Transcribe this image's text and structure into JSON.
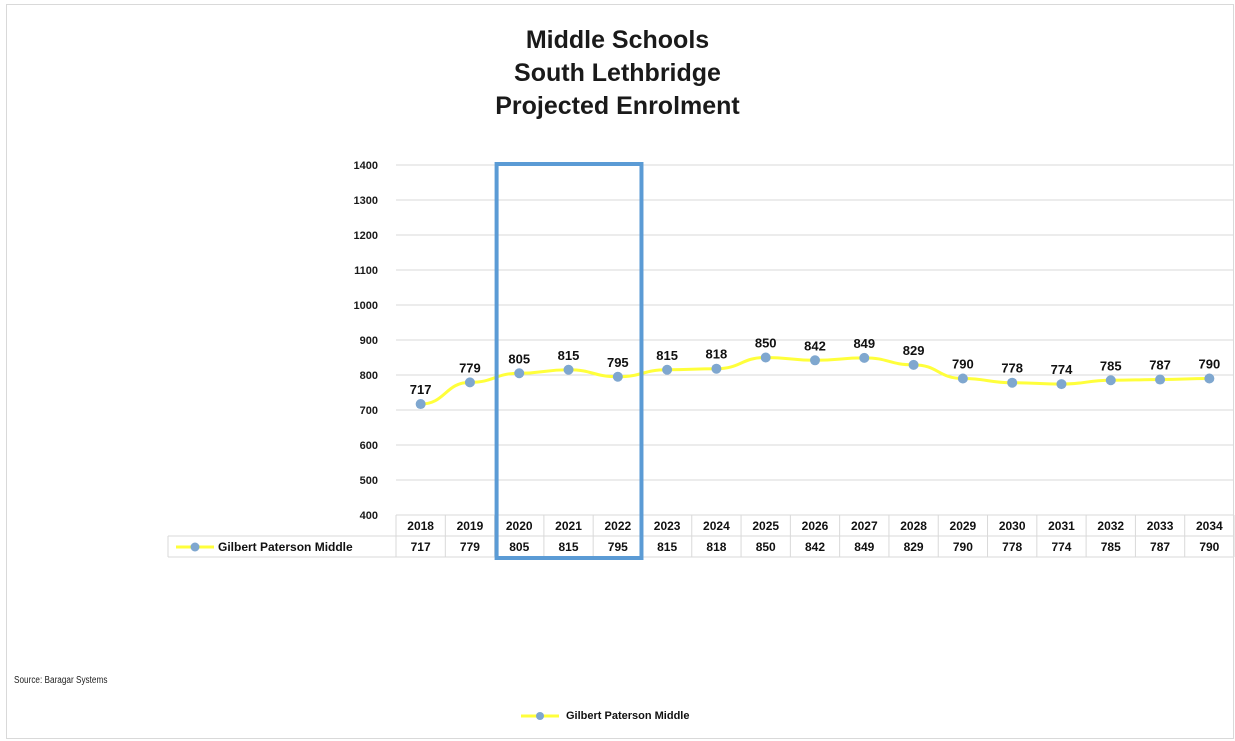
{
  "chart_data": {
    "type": "line",
    "title_lines": [
      "Middle Schools",
      "South Lethbridge",
      "Projected Enrolment"
    ],
    "x": [
      "2018",
      "2019",
      "2020",
      "2021",
      "2022",
      "2023",
      "2024",
      "2025",
      "2026",
      "2027",
      "2028",
      "2029",
      "2030",
      "2031",
      "2032",
      "2033",
      "2034"
    ],
    "series": [
      {
        "name": "Gilbert Paterson Middle",
        "values": [
          717,
          779,
          805,
          815,
          795,
          815,
          818,
          850,
          842,
          849,
          829,
          790,
          778,
          774,
          785,
          787,
          790
        ]
      }
    ],
    "ylim": [
      400,
      1400
    ],
    "yticks": [
      400,
      500,
      600,
      700,
      800,
      900,
      1000,
      1100,
      1200,
      1300,
      1400
    ],
    "grid": true,
    "data_table": true,
    "highlight_range": [
      "2020",
      "2022"
    ],
    "legend_position": "bottom",
    "line_color": "#ffff3b",
    "marker_color": "#7fa7cf",
    "highlight_color": "#5b9bd5"
  },
  "source_text": "Source: Baragar Systems"
}
